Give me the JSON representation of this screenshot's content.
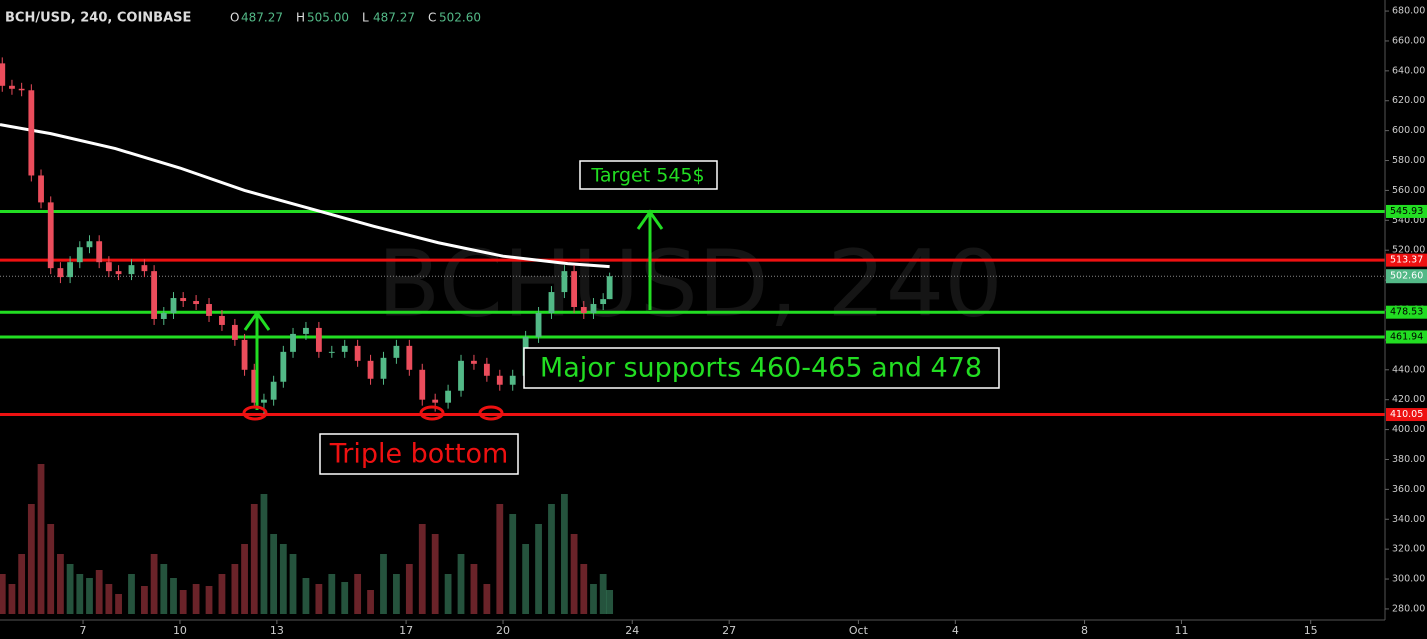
{
  "chart_data": {
    "type": "candlestick",
    "title": "BCH/USD, 240, COINBASE",
    "watermark": "BCHUSD, 240",
    "ohlc_header": [
      {
        "label": "O",
        "value": "487.27"
      },
      {
        "label": "H",
        "value": "505.00"
      },
      {
        "label": "L",
        "value": "487.27"
      },
      {
        "label": "C",
        "value": "502.60"
      }
    ],
    "up_color": "#53b987",
    "down_color": "#eb4d5c",
    "xlim": [
      4.43,
      47.3
    ],
    "xticks": [
      7,
      10,
      13,
      17,
      20,
      24,
      27,
      {
        "value": 31,
        "label": "Oct"
      },
      {
        "value": 34,
        "label": "4"
      },
      {
        "value": 38,
        "label": "8"
      },
      {
        "value": 41,
        "label": "11"
      },
      {
        "value": 45,
        "label": "15"
      }
    ],
    "ylim": [
      272.6,
      687.4
    ],
    "yticks": [
      {
        "value": 280,
        "label": "280.00"
      },
      {
        "value": 300,
        "label": "300.00"
      },
      {
        "value": 320,
        "label": "320.00"
      },
      {
        "value": 340,
        "label": "340.00"
      },
      {
        "value": 360,
        "label": "360.00"
      },
      {
        "value": 380,
        "label": "380.00"
      },
      {
        "value": 400,
        "label": "400.00"
      },
      {
        "value": 420,
        "label": "420.00"
      },
      {
        "value": 440,
        "label": "440.00"
      },
      {
        "value": 460,
        "label": "460.00"
      },
      {
        "value": 480,
        "label": "480.00"
      },
      {
        "value": 500,
        "label": "500.00"
      },
      {
        "value": 520,
        "label": "520.00"
      },
      {
        "value": 540,
        "label": "540.00"
      },
      {
        "value": 560,
        "label": "560.00"
      },
      {
        "value": 580,
        "label": "580.00"
      },
      {
        "value": 600,
        "label": "600.00"
      },
      {
        "value": 620,
        "label": "620.00"
      },
      {
        "value": 640,
        "label": "640.00"
      },
      {
        "value": 660,
        "label": "660.00"
      },
      {
        "value": 680,
        "label": "680.00"
      }
    ],
    "candles": {
      "x": [
        4.5,
        4.8,
        5.1,
        5.4,
        5.7,
        6.0,
        6.3,
        6.6,
        6.9,
        7.2,
        7.5,
        7.8,
        8.1,
        8.5,
        8.9,
        9.2,
        9.5,
        9.8,
        10.1,
        10.5,
        10.9,
        11.3,
        11.7,
        12.0,
        12.3,
        12.6,
        12.9,
        13.2,
        13.5,
        13.9,
        14.3,
        14.7,
        15.1,
        15.5,
        15.9,
        16.3,
        16.7,
        17.1,
        17.5,
        17.9,
        18.3,
        18.7,
        19.1,
        19.5,
        19.9,
        20.3,
        20.7,
        21.1,
        21.5,
        21.9,
        22.2,
        22.5,
        22.8,
        23.1,
        23.3
      ],
      "open": [
        645,
        630,
        628,
        627,
        570,
        552,
        508,
        502,
        512,
        522,
        526,
        512,
        506,
        504,
        510,
        506,
        474,
        478,
        488,
        486,
        484,
        476,
        470,
        460,
        440,
        418,
        420,
        432,
        452,
        464,
        468,
        452,
        452,
        456,
        446,
        434,
        448,
        456,
        440,
        420,
        418,
        426,
        446,
        444,
        436,
        430,
        436,
        462,
        478,
        492,
        506,
        482,
        478,
        484,
        487.27
      ],
      "high": [
        649,
        634,
        632,
        631,
        574,
        556,
        512,
        516,
        526,
        530,
        530,
        516,
        510,
        514,
        514,
        510,
        482,
        492,
        492,
        490,
        488,
        480,
        474,
        464,
        444,
        424,
        436,
        456,
        468,
        472,
        472,
        456,
        460,
        460,
        450,
        452,
        460,
        460,
        444,
        424,
        430,
        450,
        450,
        448,
        440,
        440,
        466,
        482,
        496,
        510,
        510,
        486,
        488,
        491.27,
        505
      ],
      "low": [
        626,
        624,
        623,
        566,
        548,
        504,
        498,
        498,
        508,
        518,
        508,
        502,
        500,
        500,
        502,
        470,
        470,
        474,
        482,
        480,
        472,
        466,
        456,
        436,
        414,
        410.5,
        416,
        428,
        448,
        460,
        448,
        448,
        448,
        442,
        430,
        430,
        444,
        436,
        416,
        412,
        414,
        422,
        440,
        432,
        426,
        426,
        432,
        458,
        474,
        488,
        478,
        474,
        474,
        480,
        487.27
      ],
      "close": [
        630,
        628,
        627,
        570,
        552,
        508,
        502,
        512,
        522,
        526,
        512,
        506,
        504,
        510,
        506,
        474,
        478,
        488,
        486,
        484,
        476,
        470,
        460,
        440,
        418,
        420,
        432,
        452,
        464,
        468,
        452,
        452,
        456,
        446,
        434,
        448,
        456,
        440,
        420,
        418,
        426,
        446,
        444,
        436,
        430,
        436,
        462,
        478,
        492,
        506,
        482,
        478,
        484,
        487.27,
        502.6
      ],
      "volume": [
        20,
        15,
        30,
        55,
        75,
        45,
        30,
        25,
        20,
        18,
        22,
        15,
        10,
        20,
        14,
        30,
        25,
        18,
        12,
        15,
        14,
        20,
        25,
        35,
        55,
        60,
        40,
        35,
        30,
        18,
        15,
        20,
        16,
        20,
        12,
        30,
        20,
        25,
        45,
        40,
        20,
        30,
        25,
        15,
        55,
        50,
        35,
        45,
        55,
        60,
        40,
        25,
        15,
        20,
        12
      ]
    },
    "moving_average": {
      "color": "#ffffff",
      "x": [
        4.43,
        6,
        8,
        10,
        12,
        14,
        16,
        18,
        20,
        22,
        23.3
      ],
      "values": [
        604,
        598,
        588,
        575,
        560,
        548,
        536,
        525,
        516,
        511,
        509
      ]
    },
    "levels": [
      {
        "value": 545.93,
        "label": "545.93",
        "color": "#22dd22"
      },
      {
        "value": 513.37,
        "label": "513.37",
        "color": "#ee1111"
      },
      {
        "value": 478.53,
        "label": "478.53",
        "color": "#22dd22"
      },
      {
        "value": 461.94,
        "label": "461.94",
        "color": "#22dd22"
      },
      {
        "value": 410.05,
        "label": "410.05",
        "color": "#ee1111"
      }
    ],
    "last_price": {
      "value": 502.6,
      "label": "502.60",
      "color": "#53b987"
    },
    "annotations": [
      "Target 545$",
      "Major supports 460-465 and 478",
      "Triple bottom"
    ]
  }
}
